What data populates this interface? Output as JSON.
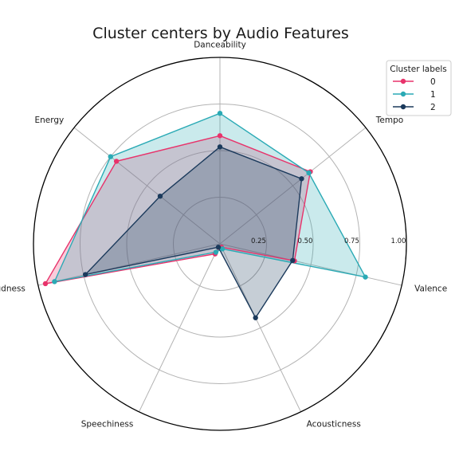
{
  "chart_data": {
    "type": "radar",
    "title": "Cluster centers by Audio Features",
    "axes": [
      "Danceability",
      "Tempo",
      "Valence",
      "Acousticness",
      "Speechiness",
      "Loudness",
      "Energy"
    ],
    "radial_ticks": [
      "0.25",
      "0.50",
      "0.75",
      "1.00"
    ],
    "rlim": [
      0,
      1
    ],
    "grid": true,
    "legend": {
      "title": "Cluster labels",
      "placement": "top-right"
    },
    "series": [
      {
        "name": "0",
        "color": "#e8336b",
        "values": [
          0.58,
          0.62,
          0.41,
          0.02,
          0.06,
          0.96,
          0.71
        ]
      },
      {
        "name": "1",
        "color": "#2aaab5",
        "values": [
          0.7,
          0.61,
          0.8,
          0.03,
          0.05,
          0.91,
          0.75
        ]
      },
      {
        "name": "2",
        "color": "#1b3a5c",
        "values": [
          0.52,
          0.56,
          0.4,
          0.44,
          0.02,
          0.74,
          0.41
        ]
      }
    ]
  }
}
